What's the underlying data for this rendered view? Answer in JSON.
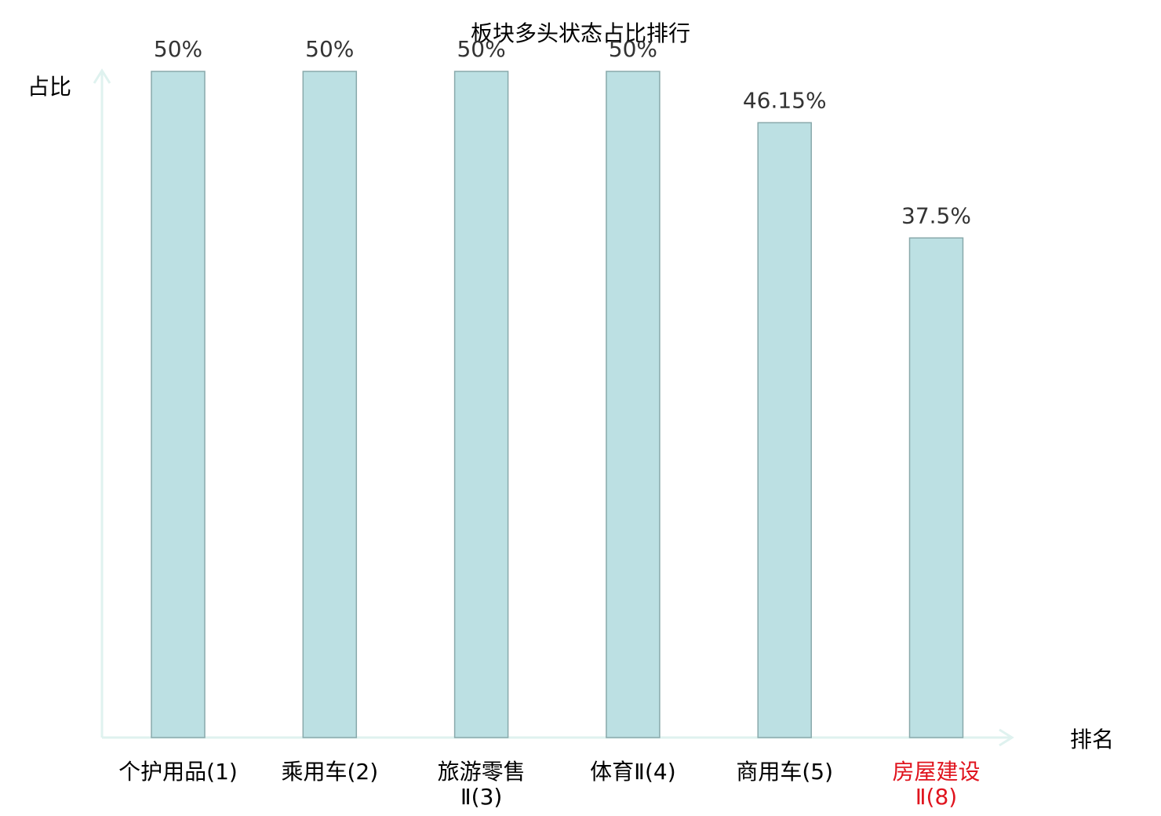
{
  "chart_data": {
    "type": "bar",
    "title": "板块多头状态占比排行",
    "xlabel": "排名",
    "ylabel": "占比",
    "categories": [
      [
        "个护用品(1)"
      ],
      [
        "乘用车(2)"
      ],
      [
        "旅游零售",
        "Ⅱ(3)"
      ],
      [
        "体育Ⅱ(4)"
      ],
      [
        "商用车(5)"
      ],
      [
        "房屋建设",
        "Ⅱ(8)"
      ]
    ],
    "values": [
      50,
      50,
      50,
      50,
      46.15,
      37.5
    ],
    "value_labels": [
      "50%",
      "50%",
      "50%",
      "50%",
      "46.15%",
      "37.5%"
    ],
    "highlight_index": 5,
    "ylim": [
      0,
      50
    ],
    "grid": false,
    "colors": {
      "bar_fill": "#bce0e3",
      "bar_stroke": "#89a9ab",
      "axis": "#dff2ef",
      "label_default": "#000000",
      "label_highlight": "#e0141e",
      "value_text": "#333333"
    }
  }
}
